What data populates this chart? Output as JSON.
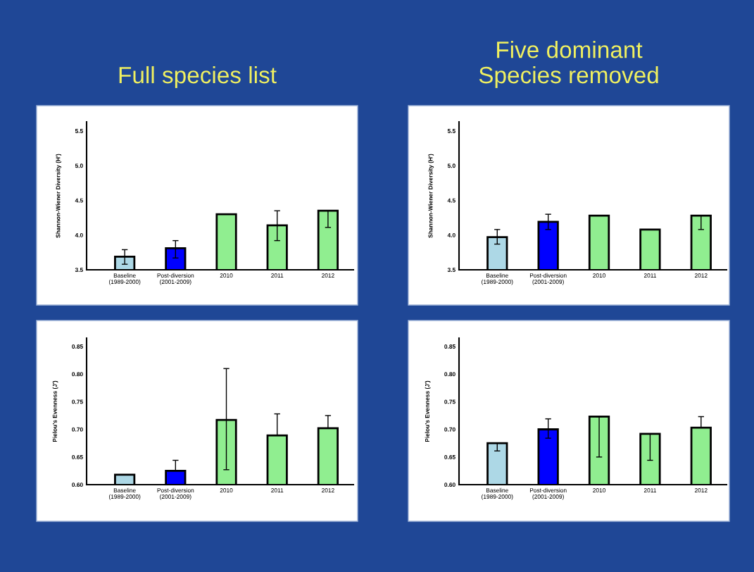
{
  "chart_data": [
    {
      "type": "bar",
      "title": "Full species list",
      "ylabel": "Shannon-Wiener Diversity (H')",
      "categories": [
        "Baseline\n(1989-2000)",
        "Post-diversion\n(2001-2009)",
        "2010",
        "2011",
        "2012"
      ],
      "values": [
        3.69,
        3.81,
        4.3,
        4.14,
        4.35
      ],
      "colors": [
        "#add8e6",
        "#0000ff",
        "#90ee90",
        "#90ee90",
        "#90ee90"
      ],
      "errors": [
        [
          3.58,
          3.79
        ],
        [
          3.67,
          3.92
        ],
        null,
        [
          3.92,
          4.35
        ],
        [
          4.11,
          4.35
        ]
      ],
      "ylim": [
        3.5,
        5.63
      ],
      "yticks": [
        3.5,
        {
          "value": 4,
          "label": "4.0"
        },
        4.5,
        {
          "value": 5,
          "label": "5.0"
        },
        5.5
      ],
      "grid": false,
      "legend": false
    },
    {
      "type": "bar",
      "title": "Five dominant\nSpecies removed",
      "ylabel": "Shannon-Wiener Diversity (H')",
      "categories": [
        "Baseline\n(1989-2000)",
        "Post-diversion\n(2001-2009)",
        "2010",
        "2011",
        "2012"
      ],
      "values": [
        3.97,
        4.19,
        4.28,
        4.08,
        4.28
      ],
      "colors": [
        "#add8e6",
        "#0000ff",
        "#90ee90",
        "#90ee90",
        "#90ee90"
      ],
      "errors": [
        [
          3.87,
          4.08
        ],
        [
          4.08,
          4.3
        ],
        null,
        null,
        [
          4.08,
          4.28
        ]
      ],
      "ylim": [
        3.5,
        5.63
      ],
      "yticks": [
        3.5,
        {
          "value": 4,
          "label": "4.0"
        },
        4.5,
        {
          "value": 5,
          "label": "5.0"
        },
        5.5
      ],
      "grid": false,
      "legend": false
    },
    {
      "type": "bar",
      "ylabel": "Pielou's Evenness (J')",
      "categories": [
        "Baseline\n(1989-2000)",
        "Post-diversion\n(2001-2009)",
        "2010",
        "2011",
        "2012"
      ],
      "values": [
        0.618,
        0.625,
        0.717,
        0.689,
        0.702
      ],
      "colors": [
        "#add8e6",
        "#0000ff",
        "#90ee90",
        "#90ee90",
        "#90ee90"
      ],
      "errors": [
        null,
        [
          0.625,
          0.644
        ],
        [
          0.627,
          0.81
        ],
        [
          0.689,
          0.728
        ],
        [
          0.702,
          0.725
        ]
      ],
      "ylim": [
        0.6,
        0.865
      ],
      "yticks": [
        {
          "value": 0.6,
          "label": "0.60"
        },
        0.65,
        {
          "value": 0.7,
          "label": "0.70"
        },
        0.75,
        {
          "value": 0.8,
          "label": "0.80"
        },
        0.85
      ],
      "grid": false,
      "legend": false
    },
    {
      "type": "bar",
      "ylabel": "Pielou's Evenness (J')",
      "categories": [
        "Baseline\n(1989-2000)",
        "Post-diversion\n(2001-2009)",
        "2010",
        "2011",
        "2012"
      ],
      "values": [
        0.675,
        0.7,
        0.723,
        0.692,
        0.703
      ],
      "colors": [
        "#add8e6",
        "#0000ff",
        "#90ee90",
        "#90ee90",
        "#90ee90"
      ],
      "errors": [
        [
          0.661,
          0.675
        ],
        [
          0.684,
          0.719
        ],
        [
          0.65,
          0.723
        ],
        [
          0.644,
          0.692
        ],
        [
          0.703,
          0.723
        ]
      ],
      "ylim": [
        0.6,
        0.865
      ],
      "yticks": [
        {
          "value": 0.6,
          "label": "0.60"
        },
        0.65,
        {
          "value": 0.7,
          "label": "0.70"
        },
        0.75,
        {
          "value": 0.8,
          "label": "0.80"
        },
        0.85
      ],
      "grid": false,
      "legend": false
    }
  ]
}
